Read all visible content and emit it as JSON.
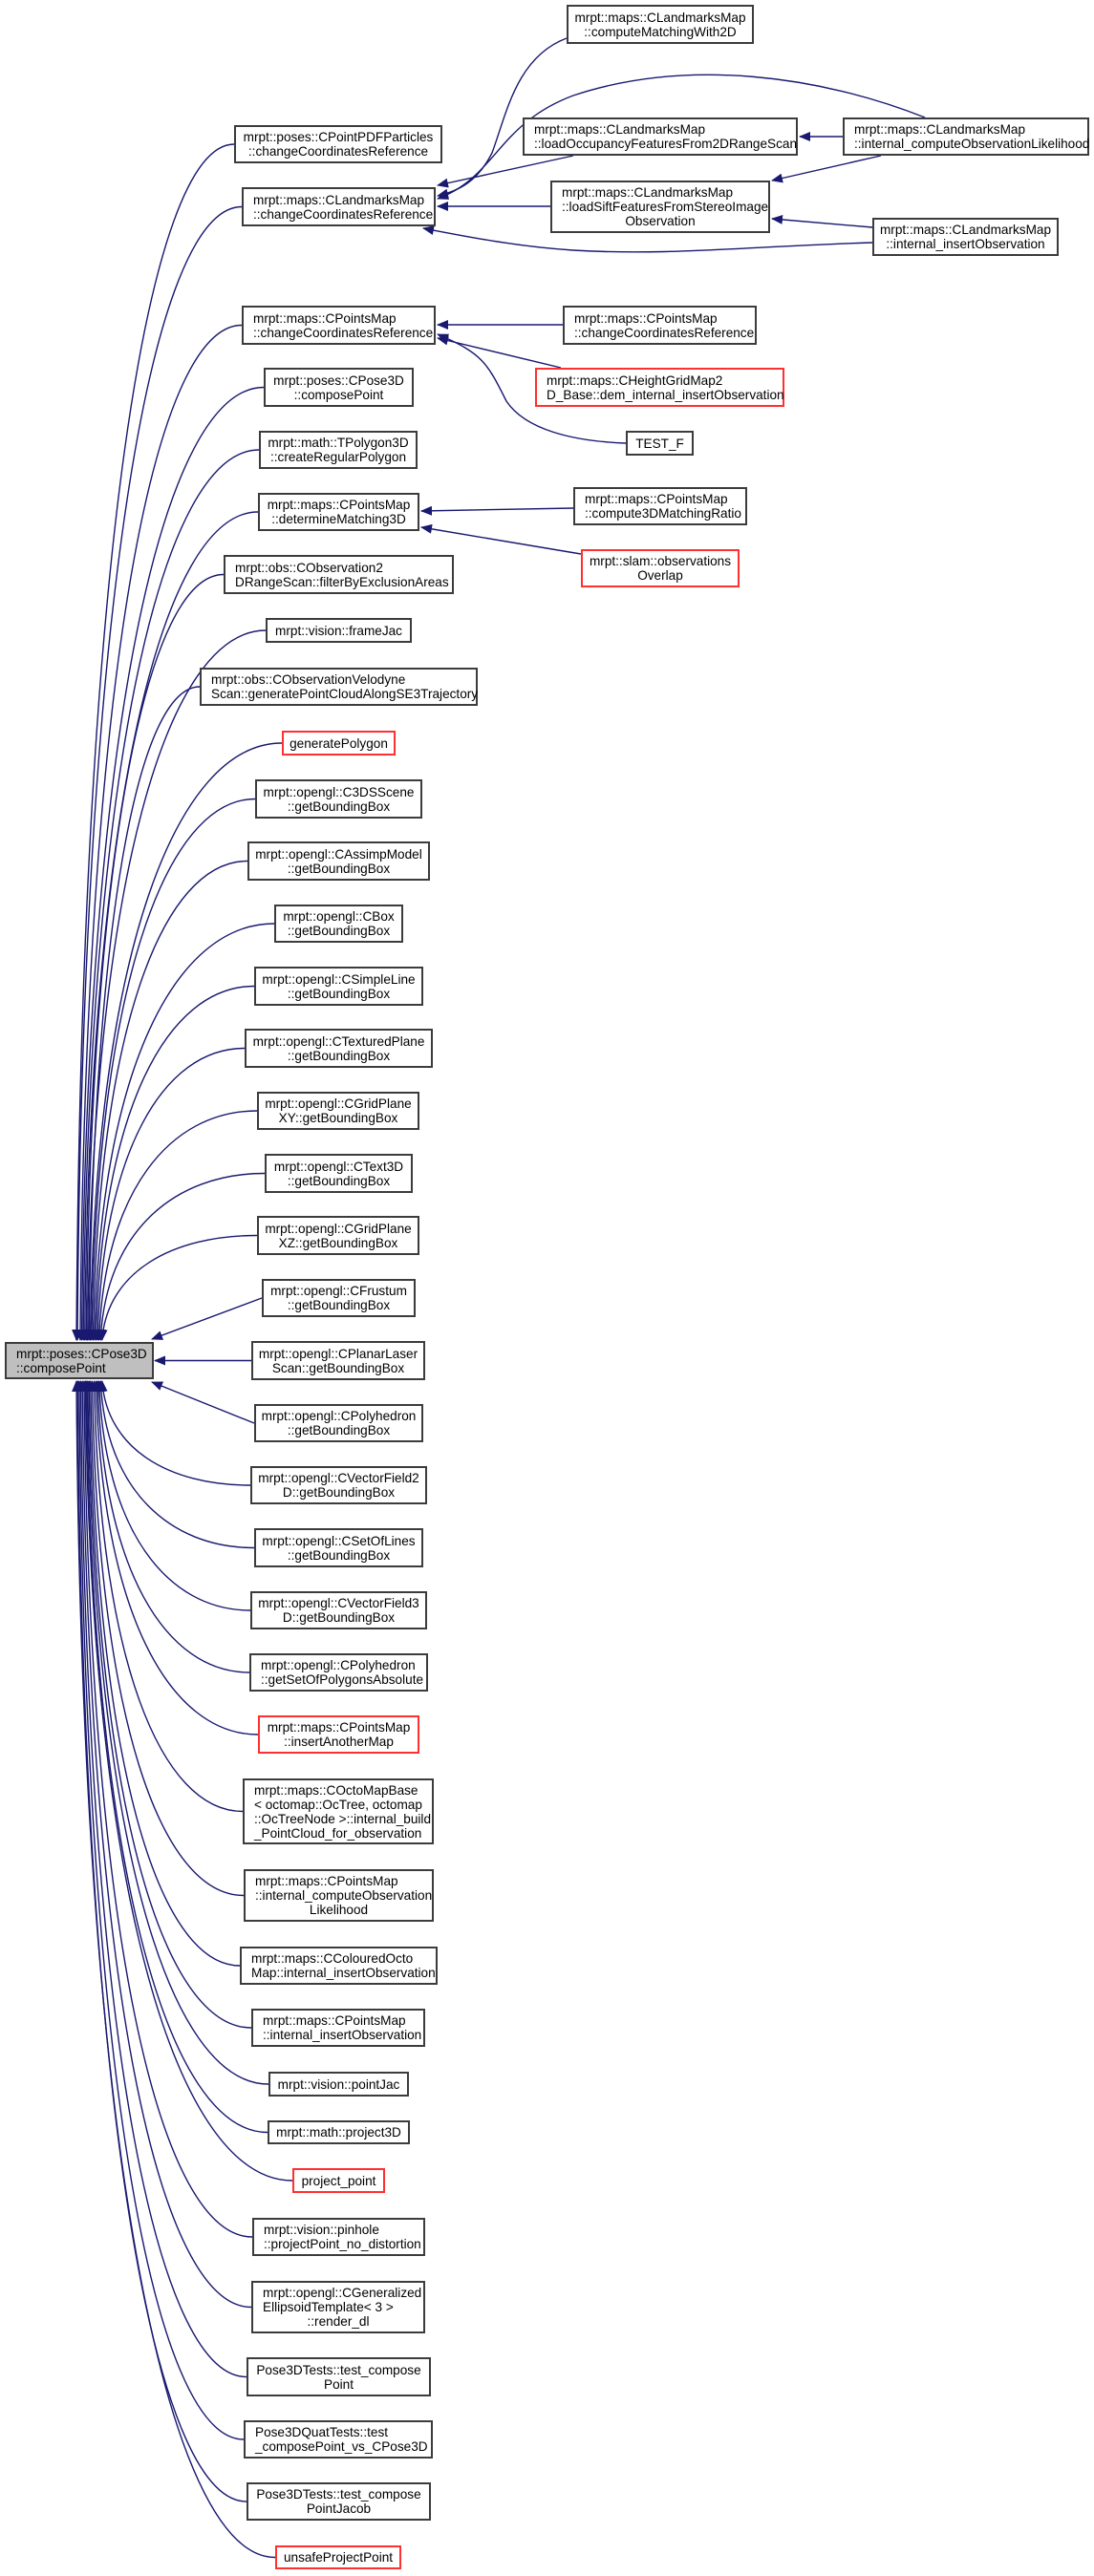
{
  "graph": {
    "edge_color": "#191970",
    "node_border_color": "#3c3c3c",
    "missing_node_border_color": "#ff0000",
    "root_fill_color": "#bfbfbf"
  },
  "nodes": [
    {
      "id": "root",
      "lines": [
        "mrpt::poses::CPose3D",
        "::composePoint"
      ],
      "kind": "root"
    },
    {
      "id": "pdfparticles_ccr",
      "lines": [
        "mrpt::poses::CPointPDFParticles",
        "::changeCoordinatesReference"
      ]
    },
    {
      "id": "landmarks_ccr",
      "lines": [
        "mrpt::maps::CLandmarksMap",
        "::changeCoordinatesReference"
      ]
    },
    {
      "id": "points_ccr",
      "lines": [
        "mrpt::maps::CPointsMap",
        "::changeCoordinatesReference"
      ]
    },
    {
      "id": "pose3d_composepoint",
      "lines": [
        "mrpt::poses::CPose3D",
        "::composePoint"
      ]
    },
    {
      "id": "tpolygon3d",
      "lines": [
        "mrpt::math::TPolygon3D",
        "::createRegularPolygon"
      ]
    },
    {
      "id": "determinematching3d",
      "lines": [
        "mrpt::maps::CPointsMap",
        "::determineMatching3D"
      ]
    },
    {
      "id": "obs2d_filter",
      "lines": [
        "mrpt::obs::CObservation2",
        "DRangeScan::filterByExclusionAreas"
      ]
    },
    {
      "id": "framejac",
      "lines": [
        "mrpt::vision::frameJac"
      ]
    },
    {
      "id": "velodyne",
      "lines": [
        "mrpt::obs::CObservationVelodyne",
        "Scan::generatePointCloudAlongSE3Trajectory"
      ]
    },
    {
      "id": "generatepolygon",
      "lines": [
        "generatePolygon"
      ],
      "kind": "red"
    },
    {
      "id": "c3ds",
      "lines": [
        "mrpt::opengl::C3DSScene",
        "::getBoundingBox"
      ]
    },
    {
      "id": "cassimp",
      "lines": [
        "mrpt::opengl::CAssimpModel",
        "::getBoundingBox"
      ]
    },
    {
      "id": "cbox",
      "lines": [
        "mrpt::opengl::CBox",
        "::getBoundingBox"
      ]
    },
    {
      "id": "csimpleline",
      "lines": [
        "mrpt::opengl::CSimpleLine",
        "::getBoundingBox"
      ]
    },
    {
      "id": "ctexturedplane",
      "lines": [
        "mrpt::opengl::CTexturedPlane",
        "::getBoundingBox"
      ]
    },
    {
      "id": "cgridplanexy",
      "lines": [
        "mrpt::opengl::CGridPlane",
        "XY::getBoundingBox"
      ]
    },
    {
      "id": "ctext3d",
      "lines": [
        "mrpt::opengl::CText3D",
        "::getBoundingBox"
      ]
    },
    {
      "id": "cgridplanexz",
      "lines": [
        "mrpt::opengl::CGridPlane",
        "XZ::getBoundingBox"
      ]
    },
    {
      "id": "cfrustum",
      "lines": [
        "mrpt::opengl::CFrustum",
        "::getBoundingBox"
      ]
    },
    {
      "id": "cplanarlaser",
      "lines": [
        "mrpt::opengl::CPlanarLaser",
        "Scan::getBoundingBox"
      ]
    },
    {
      "id": "cpolyhedron_bb",
      "lines": [
        "mrpt::opengl::CPolyhedron",
        "::getBoundingBox"
      ]
    },
    {
      "id": "cvectorfield2d",
      "lines": [
        "mrpt::opengl::CVectorField2",
        "D::getBoundingBox"
      ]
    },
    {
      "id": "csetoflines",
      "lines": [
        "mrpt::opengl::CSetOfLines",
        "::getBoundingBox"
      ]
    },
    {
      "id": "cvectorfield3d",
      "lines": [
        "mrpt::opengl::CVectorField3",
        "D::getBoundingBox"
      ]
    },
    {
      "id": "cpolyhedron_set",
      "lines": [
        "mrpt::opengl::CPolyhedron",
        "::getSetOfPolygonsAbsolute"
      ]
    },
    {
      "id": "insertanothermap",
      "lines": [
        "mrpt::maps::CPointsMap",
        "::insertAnotherMap"
      ],
      "kind": "red"
    },
    {
      "id": "coctomapbase",
      "lines": [
        "mrpt::maps::COctoMapBase",
        "< octomap::OcTree, octomap",
        "::OcTreeNode >::internal_build",
        "_PointCloud_for_observation"
      ]
    },
    {
      "id": "points_internal_compute",
      "lines": [
        "mrpt::maps::CPointsMap",
        "::internal_computeObservation",
        "Likelihood"
      ]
    },
    {
      "id": "colouredocto",
      "lines": [
        "mrpt::maps::CColouredOcto",
        "Map::internal_insertObservation"
      ]
    },
    {
      "id": "points_internal_insert",
      "lines": [
        "mrpt::maps::CPointsMap",
        "::internal_insertObservation"
      ]
    },
    {
      "id": "pointjac",
      "lines": [
        "mrpt::vision::pointJac"
      ]
    },
    {
      "id": "project3d",
      "lines": [
        "mrpt::math::project3D"
      ]
    },
    {
      "id": "project_point",
      "lines": [
        "project_point"
      ],
      "kind": "red"
    },
    {
      "id": "pinhole",
      "lines": [
        "mrpt::vision::pinhole",
        "::projectPoint_no_distortion"
      ]
    },
    {
      "id": "cgeneralized",
      "lines": [
        "mrpt::opengl::CGeneralized",
        "EllipsoidTemplate< 3 >",
        "::render_dl"
      ]
    },
    {
      "id": "test_composepoint",
      "lines": [
        "Pose3DTests::test_compose",
        "Point"
      ]
    },
    {
      "id": "quat_test",
      "lines": [
        "Pose3DQuatTests::test",
        "_composePoint_vs_CPose3D"
      ]
    },
    {
      "id": "test_composepointjacob",
      "lines": [
        "Pose3DTests::test_compose",
        "PointJacob"
      ]
    },
    {
      "id": "unsafeprojectpoint",
      "lines": [
        "unsafeProjectPoint"
      ],
      "kind": "red"
    },
    {
      "id": "computematchingwith2d",
      "lines": [
        "mrpt::maps::CLandmarksMap",
        "::computeMatchingWith2D"
      ]
    },
    {
      "id": "loadoccupancy",
      "lines": [
        "mrpt::maps::CLandmarksMap",
        "::loadOccupancyFeaturesFrom2DRangeScan"
      ]
    },
    {
      "id": "landmarks_internal_compute",
      "lines": [
        "mrpt::maps::CLandmarksMap",
        "::internal_computeObservationLikelihood"
      ]
    },
    {
      "id": "loadsift",
      "lines": [
        "mrpt::maps::CLandmarksMap",
        "::loadSiftFeaturesFromStereoImage",
        "Observation"
      ]
    },
    {
      "id": "landmarks_internal_insert",
      "lines": [
        "mrpt::maps::CLandmarksMap",
        "::internal_insertObservation"
      ]
    },
    {
      "id": "points_ccr_2",
      "lines": [
        "mrpt::maps::CPointsMap",
        "::changeCoordinatesReference"
      ]
    },
    {
      "id": "heightgrid",
      "lines": [
        "mrpt::maps::CHeightGridMap2",
        "D_Base::dem_internal_insertObservation"
      ],
      "kind": "red"
    },
    {
      "id": "test_f",
      "lines": [
        "TEST_F"
      ]
    },
    {
      "id": "compute3dmatchingratio",
      "lines": [
        "mrpt::maps::CPointsMap",
        "::compute3DMatchingRatio"
      ]
    },
    {
      "id": "observationsoverlap",
      "lines": [
        "mrpt::slam::observations",
        "Overlap"
      ],
      "kind": "red"
    }
  ],
  "edges": [
    {
      "from": "computematchingwith2d",
      "to": "landmarks_ccr"
    },
    {
      "from": "landmarks_internal_compute",
      "to": "landmarks_ccr"
    },
    {
      "from": "loadoccupancy",
      "to": "landmarks_ccr"
    },
    {
      "from": "loadsift",
      "to": "landmarks_ccr"
    },
    {
      "from": "landmarks_internal_insert",
      "to": "landmarks_ccr"
    },
    {
      "from": "landmarks_internal_compute",
      "to": "loadoccupancy"
    },
    {
      "from": "landmarks_internal_compute",
      "to": "loadsift"
    },
    {
      "from": "landmarks_internal_insert",
      "to": "loadsift"
    },
    {
      "from": "points_ccr_2",
      "to": "points_ccr"
    },
    {
      "from": "heightgrid",
      "to": "points_ccr"
    },
    {
      "from": "test_f",
      "to": "points_ccr"
    },
    {
      "from": "compute3dmatchingratio",
      "to": "determinematching3d"
    },
    {
      "from": "observationsoverlap",
      "to": "determinematching3d"
    }
  ]
}
